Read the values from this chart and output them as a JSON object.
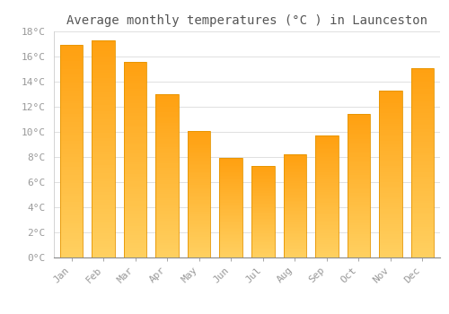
{
  "title": "Average monthly temperatures (°C ) in Launceston",
  "months": [
    "Jan",
    "Feb",
    "Mar",
    "Apr",
    "May",
    "Jun",
    "Jul",
    "Aug",
    "Sep",
    "Oct",
    "Nov",
    "Dec"
  ],
  "values": [
    16.9,
    17.3,
    15.6,
    13.0,
    10.1,
    7.9,
    7.3,
    8.2,
    9.7,
    11.4,
    13.3,
    15.1
  ],
  "bar_color_bottom": "#FFD060",
  "bar_color_top": "#FFA010",
  "ylim": [
    0,
    18
  ],
  "yticks": [
    0,
    2,
    4,
    6,
    8,
    10,
    12,
    14,
    16,
    18
  ],
  "ytick_labels": [
    "0°C",
    "2°C",
    "4°C",
    "6°C",
    "8°C",
    "10°C",
    "12°C",
    "14°C",
    "16°C",
    "18°C"
  ],
  "background_color": "#FFFFFF",
  "grid_color": "#E0E0E0",
  "title_fontsize": 10,
  "tick_fontsize": 8,
  "tick_color": "#999999",
  "bar_edge_color": "#E59500",
  "bar_width": 0.72
}
